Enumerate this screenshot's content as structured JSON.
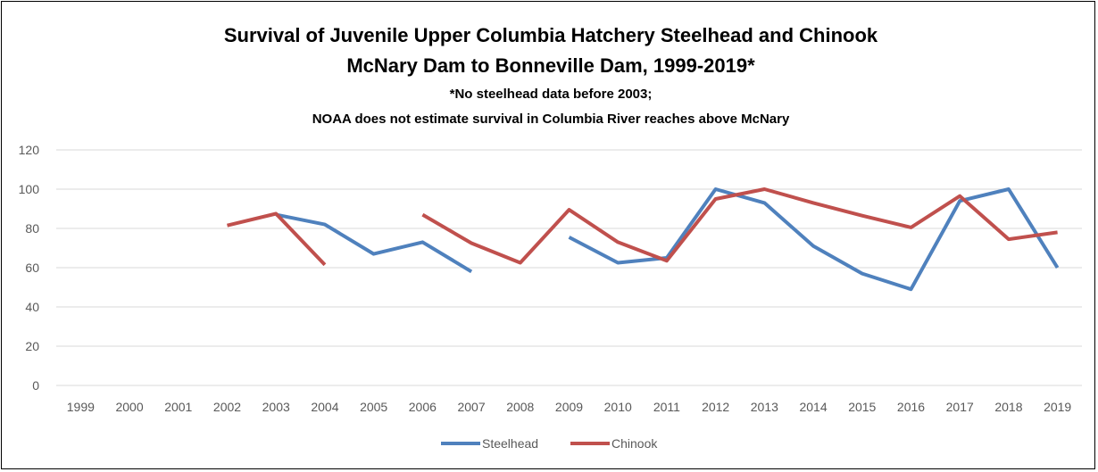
{
  "chart_data": {
    "type": "line",
    "title": "Survival of Juvenile Upper Columbia Hatchery Steelhead and Chinook",
    "title_line2": "McNary Dam to Bonneville Dam, 1999-2019*",
    "subtitle": "*No steelhead data before 2003;",
    "subtitle_line2": "NOAA does not estimate survival in Columbia River reaches above McNary",
    "xlabel": "",
    "ylabel": "",
    "x": [
      "1999",
      "2000",
      "2001",
      "2002",
      "2003",
      "2004",
      "2005",
      "2006",
      "2007",
      "2008",
      "2009",
      "2010",
      "2011",
      "2012",
      "2013",
      "2014",
      "2015",
      "2016",
      "2017",
      "2018",
      "2019"
    ],
    "y_ticks": [
      "0",
      "20",
      "40",
      "60",
      "80",
      "100",
      "120"
    ],
    "ylim": [
      0,
      120
    ],
    "grid": true,
    "legend_position": "bottom",
    "series": [
      {
        "name": "Steelhead",
        "color": "#4f81bd",
        "values": [
          null,
          null,
          null,
          null,
          87,
          82,
          67,
          73,
          58,
          null,
          75.5,
          62.5,
          65,
          100,
          93,
          71,
          57,
          49,
          94,
          100,
          60
        ]
      },
      {
        "name": "Chinook",
        "color": "#c0504d",
        "values": [
          null,
          null,
          null,
          81.5,
          87.5,
          61.5,
          null,
          87,
          72.5,
          62.5,
          89.5,
          73,
          63.5,
          95,
          100,
          93,
          86.5,
          80.5,
          96.5,
          74.5,
          78
        ]
      }
    ]
  }
}
